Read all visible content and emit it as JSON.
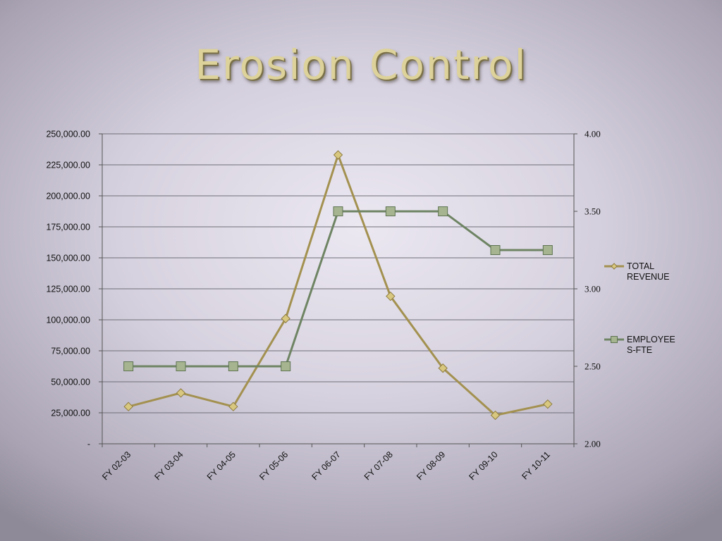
{
  "title": "Erosion Control",
  "chart_data": {
    "type": "line",
    "categories": [
      "FY 02-03",
      "FY 03-04",
      "FY 04-05",
      "FY 05-06",
      "FY 06-07",
      "FY 07-08",
      "FY 08-09",
      "FY 09-10",
      "FY 10-11"
    ],
    "series": [
      {
        "name_lines": [
          "TOTAL",
          "REVENUE"
        ],
        "axis": "left",
        "marker": "diamond",
        "color": "#a39150",
        "marker_fill": "#d8c77f",
        "values": [
          30000,
          41000,
          30000,
          101000,
          233000,
          119000,
          61000,
          23000,
          32000
        ]
      },
      {
        "name_lines": [
          "EMPLOYEE",
          "S-FTE"
        ],
        "axis": "right",
        "marker": "square",
        "color": "#6e8463",
        "marker_fill": "#a6b58f",
        "values": [
          2.5,
          2.5,
          2.5,
          2.5,
          3.5,
          3.5,
          3.5,
          3.25,
          3.25
        ]
      }
    ],
    "left_axis": {
      "ylim": [
        0,
        250000
      ],
      "ticks": [
        0,
        25000,
        50000,
        75000,
        100000,
        125000,
        150000,
        175000,
        200000,
        225000,
        250000
      ],
      "tick_labels": [
        "-",
        "25,000.00",
        "50,000.00",
        "75,000.00",
        "100,000.00",
        "125,000.00",
        "150,000.00",
        "175,000.00",
        "200,000.00",
        "225,000.00",
        "250,000.00"
      ]
    },
    "right_axis": {
      "ylim": [
        2.0,
        4.0
      ],
      "ticks": [
        2.0,
        2.5,
        3.0,
        3.5,
        4.0
      ],
      "tick_labels": [
        "2.00",
        "2.50",
        "3.00",
        "3.50",
        "4.00"
      ]
    },
    "grid": true,
    "legend_position": "right"
  }
}
